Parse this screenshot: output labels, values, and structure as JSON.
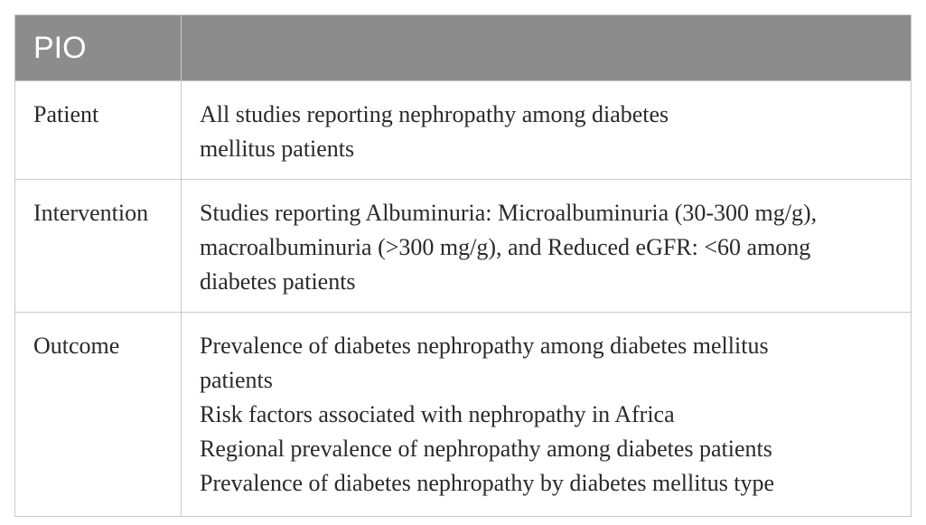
{
  "table": {
    "header": [
      "PIO",
      ""
    ],
    "rows": [
      {
        "label": "Patient",
        "lines": [
          "All studies reporting nephropathy among diabetes",
          "mellitus patients"
        ]
      },
      {
        "label": "Intervention",
        "lines": [
          "Studies reporting Albuminuria: Microalbuminuria (30-300 mg/g),",
          "macroalbuminuria (>300 mg/g), and Reduced eGFR: <60 among",
          "diabetes patients"
        ]
      },
      {
        "label": "Outcome",
        "lines": [
          "Prevalence of diabetes nephropathy among diabetes mellitus",
          "patients",
          "Risk factors associated with nephropathy in Africa",
          "Regional prevalence of nephropathy among diabetes patients",
          "Prevalence of diabetes nephropathy by diabetes mellitus type"
        ]
      }
    ]
  }
}
